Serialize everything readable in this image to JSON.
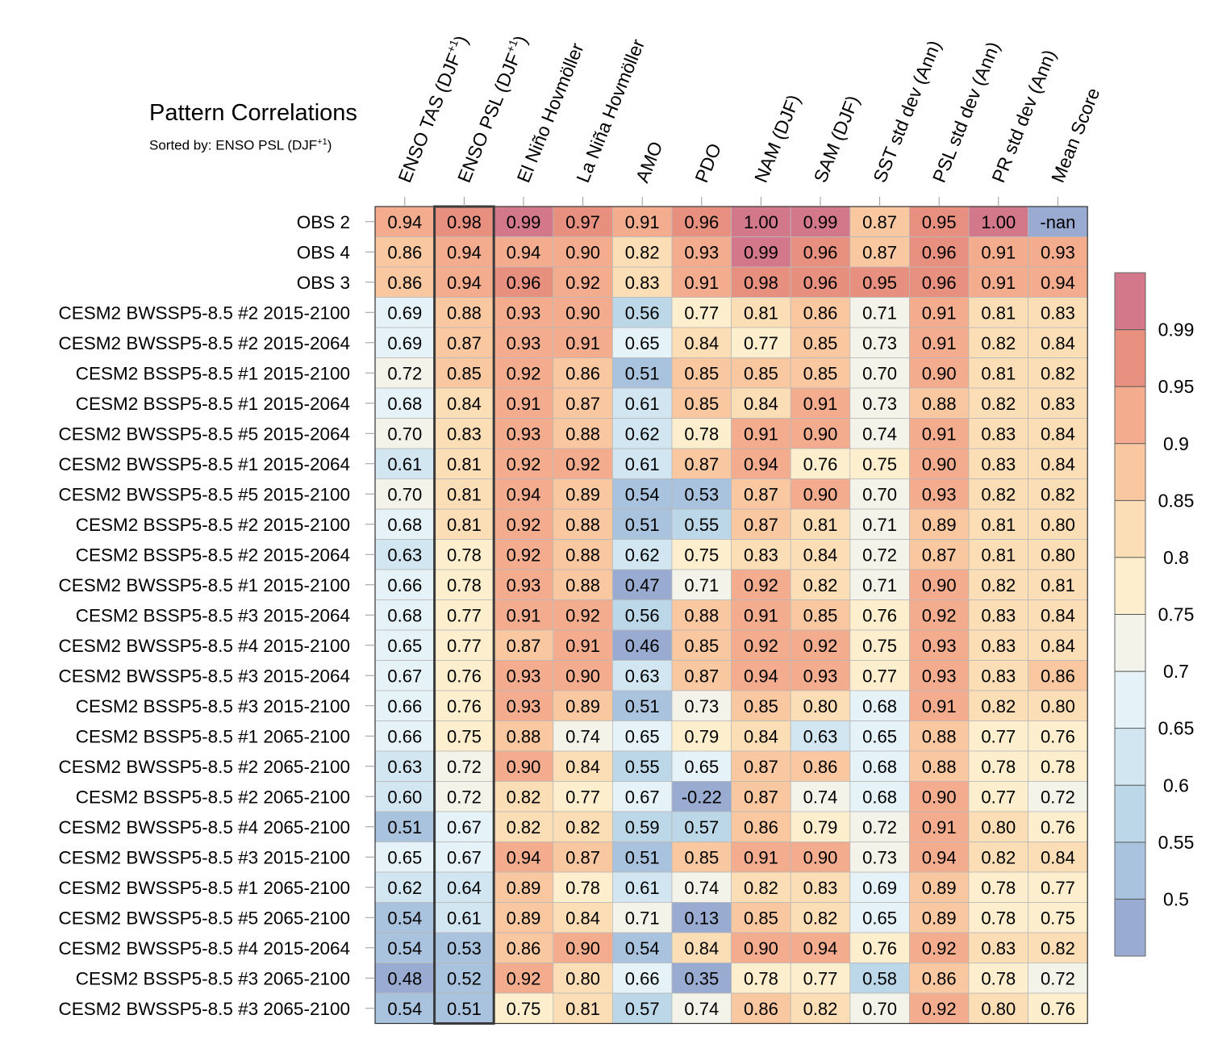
{
  "chart_data": {
    "type": "heatmap",
    "title": "Pattern Correlations",
    "subtitle": {
      "prefix": "Sorted by: ENSO PSL (DJF",
      "sup": "+1",
      "suffix": ")"
    },
    "columns": [
      {
        "base": "ENSO TAS (DJF",
        "sup": "+1",
        "tail": ")"
      },
      {
        "base": "ENSO PSL (DJF",
        "sup": "+1",
        "tail": ")"
      },
      {
        "base": "El Niño Hovmöller"
      },
      {
        "base": "La Niña Hovmöller"
      },
      {
        "base": "AMO"
      },
      {
        "base": "PDO"
      },
      {
        "base": "NAM (DJF)"
      },
      {
        "base": "SAM (DJF)"
      },
      {
        "base": "SST std dev (Ann)"
      },
      {
        "base": "PSL std dev (Ann)"
      },
      {
        "base": "PR std dev (Ann)"
      },
      {
        "base": "Mean Score"
      }
    ],
    "highlighted_column": "ENSO PSL (DJF+1)",
    "rows": [
      "OBS 2",
      "OBS 4",
      "OBS 3",
      "CESM2 BWSSP5-8.5 #2 2015-2100",
      "CESM2 BWSSP5-8.5 #2 2015-2064",
      "CESM2 BSSP5-8.5 #1 2015-2100",
      "CESM2 BSSP5-8.5 #1 2015-2064",
      "CESM2 BWSSP5-8.5 #5 2015-2064",
      "CESM2 BWSSP5-8.5 #1 2015-2064",
      "CESM2 BWSSP5-8.5 #5 2015-2100",
      "CESM2 BSSP5-8.5 #2 2015-2100",
      "CESM2 BSSP5-8.5 #2 2015-2064",
      "CESM2 BWSSP5-8.5 #1 2015-2100",
      "CESM2 BSSP5-8.5 #3 2015-2064",
      "CESM2 BWSSP5-8.5 #4 2015-2100",
      "CESM2 BWSSP5-8.5 #3 2015-2064",
      "CESM2 BSSP5-8.5 #3 2015-2100",
      "CESM2 BSSP5-8.5 #1 2065-2100",
      "CESM2 BWSSP5-8.5 #2 2065-2100",
      "CESM2 BSSP5-8.5 #2 2065-2100",
      "CESM2 BWSSP5-8.5 #4 2065-2100",
      "CESM2 BWSSP5-8.5 #3 2015-2100",
      "CESM2 BWSSP5-8.5 #1 2065-2100",
      "CESM2 BWSSP5-8.5 #5 2065-2100",
      "CESM2 BWSSP5-8.5 #4 2015-2064",
      "CESM2 BSSP5-8.5 #3 2065-2100",
      "CESM2 BWSSP5-8.5 #3 2065-2100"
    ],
    "values": [
      [
        "0.94",
        "0.98",
        "0.99",
        "0.97",
        "0.91",
        "0.96",
        "1.00",
        "0.99",
        "0.87",
        "0.95",
        "1.00",
        "-nan"
      ],
      [
        "0.86",
        "0.94",
        "0.94",
        "0.90",
        "0.82",
        "0.93",
        "0.99",
        "0.96",
        "0.87",
        "0.96",
        "0.91",
        "0.93"
      ],
      [
        "0.86",
        "0.94",
        "0.96",
        "0.92",
        "0.83",
        "0.91",
        "0.98",
        "0.96",
        "0.95",
        "0.96",
        "0.91",
        "0.94"
      ],
      [
        "0.69",
        "0.88",
        "0.93",
        "0.90",
        "0.56",
        "0.77",
        "0.81",
        "0.86",
        "0.71",
        "0.91",
        "0.81",
        "0.83"
      ],
      [
        "0.69",
        "0.87",
        "0.93",
        "0.91",
        "0.65",
        "0.84",
        "0.77",
        "0.85",
        "0.73",
        "0.91",
        "0.82",
        "0.84"
      ],
      [
        "0.72",
        "0.85",
        "0.92",
        "0.86",
        "0.51",
        "0.85",
        "0.85",
        "0.85",
        "0.70",
        "0.90",
        "0.81",
        "0.82"
      ],
      [
        "0.68",
        "0.84",
        "0.91",
        "0.87",
        "0.61",
        "0.85",
        "0.84",
        "0.91",
        "0.73",
        "0.88",
        "0.82",
        "0.83"
      ],
      [
        "0.70",
        "0.83",
        "0.93",
        "0.88",
        "0.62",
        "0.78",
        "0.91",
        "0.90",
        "0.74",
        "0.91",
        "0.83",
        "0.84"
      ],
      [
        "0.61",
        "0.81",
        "0.92",
        "0.92",
        "0.61",
        "0.87",
        "0.94",
        "0.76",
        "0.75",
        "0.90",
        "0.83",
        "0.84"
      ],
      [
        "0.70",
        "0.81",
        "0.94",
        "0.89",
        "0.54",
        "0.53",
        "0.87",
        "0.90",
        "0.70",
        "0.93",
        "0.82",
        "0.82"
      ],
      [
        "0.68",
        "0.81",
        "0.92",
        "0.88",
        "0.51",
        "0.55",
        "0.87",
        "0.81",
        "0.71",
        "0.89",
        "0.81",
        "0.80"
      ],
      [
        "0.63",
        "0.78",
        "0.92",
        "0.88",
        "0.62",
        "0.75",
        "0.83",
        "0.84",
        "0.72",
        "0.87",
        "0.81",
        "0.80"
      ],
      [
        "0.66",
        "0.78",
        "0.93",
        "0.88",
        "0.47",
        "0.71",
        "0.92",
        "0.82",
        "0.71",
        "0.90",
        "0.82",
        "0.81"
      ],
      [
        "0.68",
        "0.77",
        "0.91",
        "0.92",
        "0.56",
        "0.88",
        "0.91",
        "0.85",
        "0.76",
        "0.92",
        "0.83",
        "0.84"
      ],
      [
        "0.65",
        "0.77",
        "0.87",
        "0.91",
        "0.46",
        "0.85",
        "0.92",
        "0.92",
        "0.75",
        "0.93",
        "0.83",
        "0.84"
      ],
      [
        "0.67",
        "0.76",
        "0.93",
        "0.90",
        "0.63",
        "0.87",
        "0.94",
        "0.93",
        "0.77",
        "0.93",
        "0.83",
        "0.86"
      ],
      [
        "0.66",
        "0.76",
        "0.93",
        "0.89",
        "0.51",
        "0.73",
        "0.85",
        "0.80",
        "0.68",
        "0.91",
        "0.82",
        "0.80"
      ],
      [
        "0.66",
        "0.75",
        "0.88",
        "0.74",
        "0.65",
        "0.79",
        "0.84",
        "0.63",
        "0.65",
        "0.88",
        "0.77",
        "0.76"
      ],
      [
        "0.63",
        "0.72",
        "0.90",
        "0.84",
        "0.55",
        "0.65",
        "0.87",
        "0.86",
        "0.68",
        "0.88",
        "0.78",
        "0.78"
      ],
      [
        "0.60",
        "0.72",
        "0.82",
        "0.77",
        "0.67",
        "-0.22",
        "0.87",
        "0.74",
        "0.68",
        "0.90",
        "0.77",
        "0.72"
      ],
      [
        "0.51",
        "0.67",
        "0.82",
        "0.82",
        "0.59",
        "0.57",
        "0.86",
        "0.79",
        "0.72",
        "0.91",
        "0.80",
        "0.76"
      ],
      [
        "0.65",
        "0.67",
        "0.94",
        "0.87",
        "0.51",
        "0.85",
        "0.91",
        "0.90",
        "0.73",
        "0.94",
        "0.82",
        "0.84"
      ],
      [
        "0.62",
        "0.64",
        "0.89",
        "0.78",
        "0.61",
        "0.74",
        "0.82",
        "0.83",
        "0.69",
        "0.89",
        "0.78",
        "0.77"
      ],
      [
        "0.54",
        "0.61",
        "0.89",
        "0.84",
        "0.71",
        "0.13",
        "0.85",
        "0.82",
        "0.65",
        "0.89",
        "0.78",
        "0.75"
      ],
      [
        "0.54",
        "0.53",
        "0.86",
        "0.90",
        "0.54",
        "0.84",
        "0.90",
        "0.94",
        "0.76",
        "0.92",
        "0.83",
        "0.82"
      ],
      [
        "0.48",
        "0.52",
        "0.92",
        "0.80",
        "0.66",
        "0.35",
        "0.78",
        "0.77",
        "0.58",
        "0.86",
        "0.78",
        "0.72"
      ],
      [
        "0.54",
        "0.51",
        "0.75",
        "0.81",
        "0.57",
        "0.74",
        "0.86",
        "0.82",
        "0.70",
        "0.92",
        "0.80",
        "0.76"
      ]
    ],
    "colorbar": {
      "levels": [
        0.5,
        0.55,
        0.6,
        0.65,
        0.7,
        0.75,
        0.8,
        0.85,
        0.9,
        0.95,
        0.99
      ],
      "tick_labels": [
        "0.5",
        "0.55",
        "0.6",
        "0.65",
        "0.7",
        "0.75",
        "0.8",
        "0.85",
        "0.9",
        "0.95",
        "0.99"
      ],
      "colors": [
        "#9aabd1",
        "#a9c2dd",
        "#bcd7e8",
        "#d2e6f1",
        "#e5f2f8",
        "#f4f3ea",
        "#fdefcd",
        "#fbddb6",
        "#f9c8a0",
        "#f3ad8e",
        "#e8907f",
        "#d2788a"
      ],
      "nan_color": "#9aabd1"
    }
  }
}
